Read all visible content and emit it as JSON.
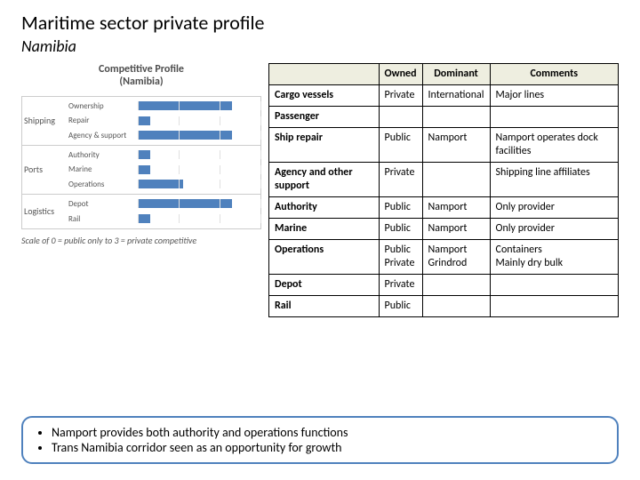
{
  "title": "Maritime sector private profile",
  "subtitle": "Namibia",
  "chart": {
    "title": "Competitive Profile\n(Namibia)",
    "scale_note": "Scale of 0 = public  only to 3 = private competitive",
    "xmax": 3,
    "bar_color": "#4f81bd",
    "grid_color": "#e0e0e0",
    "border_color": "#cccccc",
    "groups": [
      {
        "label": "Shipping",
        "bars": [
          {
            "label": "Ownership",
            "value": 2.3
          },
          {
            "label": "Repair",
            "value": 0.3
          },
          {
            "label": "Agency & support",
            "value": 2.3
          }
        ]
      },
      {
        "label": "Ports",
        "bars": [
          {
            "label": "Authority",
            "value": 0.3
          },
          {
            "label": "Marine",
            "value": 0.3
          },
          {
            "label": "Operations",
            "value": 1.1
          }
        ]
      },
      {
        "label": "Logistics",
        "bars": [
          {
            "label": "Depot",
            "value": 2.3
          },
          {
            "label": "Rail",
            "value": 0.3
          }
        ]
      }
    ]
  },
  "table": {
    "header_bg": "#eeeee0",
    "columns": [
      "",
      "Owned",
      "Dominant",
      "Comments"
    ],
    "rows": [
      [
        "Cargo vessels",
        "Private",
        "International",
        "Major lines"
      ],
      [
        "Passenger",
        "",
        "",
        ""
      ],
      [
        "Ship repair",
        "Public",
        "Namport",
        "Namport operates dock facilities"
      ],
      [
        "Agency and other support",
        "Private",
        "",
        "Shipping line affiliates"
      ],
      [
        "Authority",
        "Public",
        "Namport",
        "Only provider"
      ],
      [
        "Marine",
        "Public",
        "Namport",
        "Only provider"
      ],
      [
        "Operations",
        "Public\nPrivate",
        "Namport\nGrindrod",
        "Containers\nMainly dry bulk"
      ],
      [
        "Depot",
        "Private",
        "",
        ""
      ],
      [
        "Rail",
        "Public",
        "",
        ""
      ]
    ]
  },
  "notes": [
    "Namport provides both authority and operations functions",
    "Trans Namibia corridor seen  as an opportunity for growth"
  ]
}
